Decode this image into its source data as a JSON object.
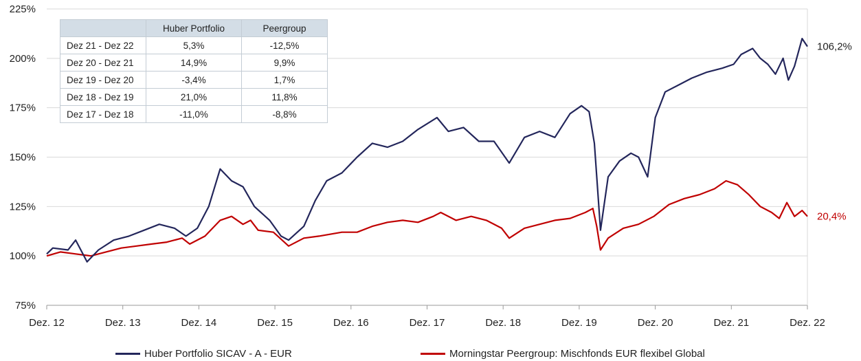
{
  "chart_data": {
    "type": "line",
    "x_ticks": [
      "Dez. 12",
      "Dez. 13",
      "Dez. 14",
      "Dez. 15",
      "Dez. 16",
      "Dez. 17",
      "Dez. 18",
      "Dez. 19",
      "Dez. 20",
      "Dez. 21",
      "Dez. 22"
    ],
    "y_ticks": [
      "75%",
      "100%",
      "125%",
      "150%",
      "175%",
      "200%",
      "225%"
    ],
    "ylim": [
      75,
      225
    ],
    "xlim": [
      2012.92,
      2022.92
    ],
    "grid": "horizontal",
    "legend_position": "bottom",
    "series": [
      {
        "name": "Huber Portfolio SICAV - A - EUR",
        "color": "#23265b",
        "end_label": "106,2%",
        "points": [
          [
            2012.92,
            101
          ],
          [
            2013.0,
            104
          ],
          [
            2013.2,
            103
          ],
          [
            2013.3,
            108
          ],
          [
            2013.45,
            97
          ],
          [
            2013.6,
            103
          ],
          [
            2013.8,
            108
          ],
          [
            2014.0,
            110
          ],
          [
            2014.2,
            113
          ],
          [
            2014.4,
            116
          ],
          [
            2014.6,
            114
          ],
          [
            2014.75,
            110
          ],
          [
            2014.9,
            114
          ],
          [
            2015.05,
            125
          ],
          [
            2015.2,
            144
          ],
          [
            2015.35,
            138
          ],
          [
            2015.5,
            135
          ],
          [
            2015.65,
            125
          ],
          [
            2015.85,
            118
          ],
          [
            2016.0,
            110
          ],
          [
            2016.1,
            108
          ],
          [
            2016.3,
            115
          ],
          [
            2016.45,
            128
          ],
          [
            2016.6,
            138
          ],
          [
            2016.8,
            142
          ],
          [
            2017.0,
            150
          ],
          [
            2017.2,
            157
          ],
          [
            2017.4,
            155
          ],
          [
            2017.6,
            158
          ],
          [
            2017.8,
            164
          ],
          [
            2018.05,
            170
          ],
          [
            2018.2,
            163
          ],
          [
            2018.4,
            165
          ],
          [
            2018.6,
            158
          ],
          [
            2018.8,
            158
          ],
          [
            2019.0,
            147
          ],
          [
            2019.2,
            160
          ],
          [
            2019.4,
            163
          ],
          [
            2019.6,
            160
          ],
          [
            2019.8,
            172
          ],
          [
            2019.95,
            176
          ],
          [
            2020.05,
            173
          ],
          [
            2020.12,
            157
          ],
          [
            2020.2,
            113
          ],
          [
            2020.3,
            140
          ],
          [
            2020.45,
            148
          ],
          [
            2020.6,
            152
          ],
          [
            2020.7,
            150
          ],
          [
            2020.82,
            140
          ],
          [
            2020.92,
            170
          ],
          [
            2021.05,
            183
          ],
          [
            2021.2,
            186
          ],
          [
            2021.4,
            190
          ],
          [
            2021.6,
            193
          ],
          [
            2021.8,
            195
          ],
          [
            2021.95,
            197
          ],
          [
            2022.05,
            202
          ],
          [
            2022.2,
            205
          ],
          [
            2022.3,
            200
          ],
          [
            2022.4,
            197
          ],
          [
            2022.5,
            192
          ],
          [
            2022.6,
            200
          ],
          [
            2022.67,
            189
          ],
          [
            2022.75,
            196
          ],
          [
            2022.85,
            210
          ],
          [
            2022.92,
            206
          ]
        ]
      },
      {
        "name": "Morningstar Peergroup: Mischfonds EUR flexibel Global",
        "color": "#c00000",
        "end_label": "20,4%",
        "points": [
          [
            2012.92,
            100
          ],
          [
            2013.1,
            102
          ],
          [
            2013.3,
            101
          ],
          [
            2013.5,
            100
          ],
          [
            2013.7,
            102
          ],
          [
            2013.9,
            104
          ],
          [
            2014.1,
            105
          ],
          [
            2014.3,
            106
          ],
          [
            2014.5,
            107
          ],
          [
            2014.7,
            109
          ],
          [
            2014.8,
            106
          ],
          [
            2015.0,
            110
          ],
          [
            2015.2,
            118
          ],
          [
            2015.35,
            120
          ],
          [
            2015.5,
            116
          ],
          [
            2015.6,
            118
          ],
          [
            2015.7,
            113
          ],
          [
            2015.9,
            112
          ],
          [
            2016.1,
            105
          ],
          [
            2016.3,
            109
          ],
          [
            2016.5,
            110
          ],
          [
            2016.8,
            112
          ],
          [
            2017.0,
            112
          ],
          [
            2017.2,
            115
          ],
          [
            2017.4,
            117
          ],
          [
            2017.6,
            118
          ],
          [
            2017.8,
            117
          ],
          [
            2018.0,
            120
          ],
          [
            2018.1,
            122
          ],
          [
            2018.3,
            118
          ],
          [
            2018.5,
            120
          ],
          [
            2018.7,
            118
          ],
          [
            2018.9,
            114
          ],
          [
            2019.0,
            109
          ],
          [
            2019.2,
            114
          ],
          [
            2019.4,
            116
          ],
          [
            2019.6,
            118
          ],
          [
            2019.8,
            119
          ],
          [
            2020.0,
            122
          ],
          [
            2020.1,
            124
          ],
          [
            2020.15,
            115
          ],
          [
            2020.2,
            103
          ],
          [
            2020.3,
            109
          ],
          [
            2020.5,
            114
          ],
          [
            2020.7,
            116
          ],
          [
            2020.9,
            120
          ],
          [
            2021.1,
            126
          ],
          [
            2021.3,
            129
          ],
          [
            2021.5,
            131
          ],
          [
            2021.7,
            134
          ],
          [
            2021.85,
            138
          ],
          [
            2022.0,
            136
          ],
          [
            2022.15,
            131
          ],
          [
            2022.3,
            125
          ],
          [
            2022.45,
            122
          ],
          [
            2022.55,
            119
          ],
          [
            2022.65,
            127
          ],
          [
            2022.75,
            120
          ],
          [
            2022.85,
            123
          ],
          [
            2022.92,
            120
          ]
        ]
      }
    ],
    "table": {
      "headers": [
        "",
        "Huber Portfolio",
        "Peergroup"
      ],
      "rows": [
        [
          "Dez 21 - Dez 22",
          "5,3%",
          "-12,5%"
        ],
        [
          "Dez 20 - Dez 21",
          "14,9%",
          "9,9%"
        ],
        [
          "Dez 19 - Dez 20",
          "-3,4%",
          "1,7%"
        ],
        [
          "Dez 18 - Dez 19",
          "21,0%",
          "11,8%"
        ],
        [
          "Dez 17 - Dez 18",
          "-11,0%",
          "-8,8%"
        ]
      ]
    }
  }
}
